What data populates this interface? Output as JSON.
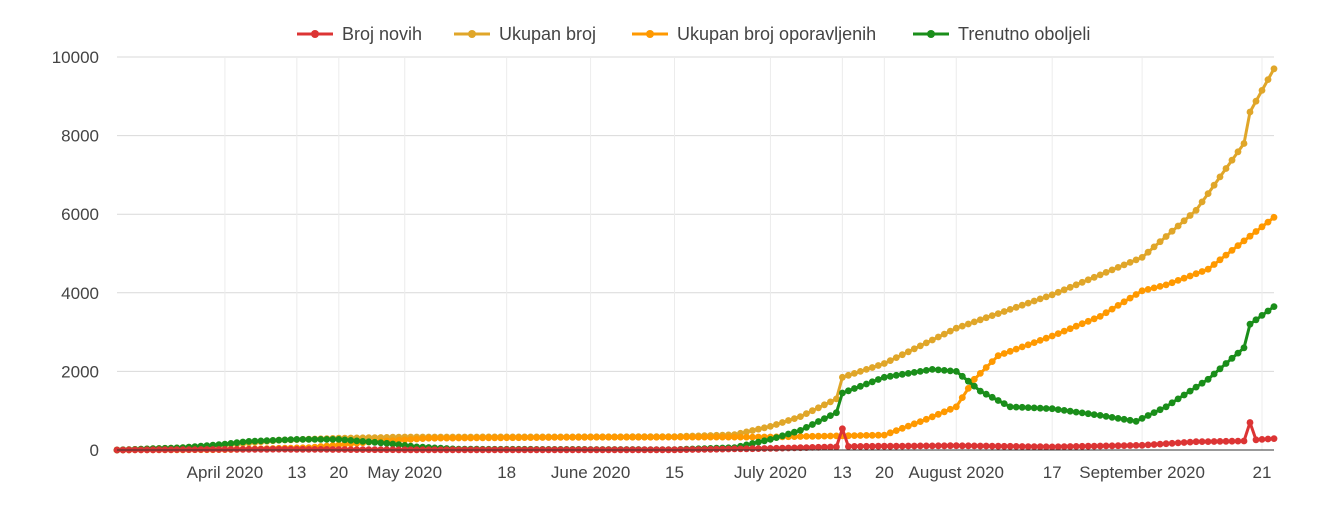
{
  "chart_data": {
    "type": "line",
    "legend_position": "top",
    "grid": true,
    "ylim": [
      0,
      10000
    ],
    "y_ticks": [
      0,
      2000,
      4000,
      6000,
      8000,
      10000
    ],
    "x_range": [
      "2020-03-14",
      "2020-09-23"
    ],
    "x_tick_labels": [
      {
        "date": "2020-04-01",
        "label": "April 2020"
      },
      {
        "date": "2020-04-13",
        "label": "13"
      },
      {
        "date": "2020-04-20",
        "label": "20"
      },
      {
        "date": "2020-05-01",
        "label": "May 2020"
      },
      {
        "date": "2020-05-18",
        "label": "18"
      },
      {
        "date": "2020-06-01",
        "label": "June 2020"
      },
      {
        "date": "2020-06-15",
        "label": "15"
      },
      {
        "date": "2020-07-01",
        "label": "July 2020"
      },
      {
        "date": "2020-07-13",
        "label": "13"
      },
      {
        "date": "2020-07-20",
        "label": "20"
      },
      {
        "date": "2020-08-01",
        "label": "August 2020"
      },
      {
        "date": "2020-08-17",
        "label": "17"
      },
      {
        "date": "2020-09-01",
        "label": "September 2020"
      },
      {
        "date": "2020-09-21",
        "label": "21"
      }
    ],
    "series": [
      {
        "name": "Broj novih",
        "color": "#dc3434",
        "points": [
          [
            "2020-03-14",
            0
          ],
          [
            "2020-03-25",
            10
          ],
          [
            "2020-04-10",
            20
          ],
          [
            "2020-05-01",
            5
          ],
          [
            "2020-06-15",
            5
          ],
          [
            "2020-07-01",
            40
          ],
          [
            "2020-07-12",
            80
          ],
          [
            "2020-07-13",
            540
          ],
          [
            "2020-07-14",
            90
          ],
          [
            "2020-08-01",
            110
          ],
          [
            "2020-08-17",
            80
          ],
          [
            "2020-09-01",
            120
          ],
          [
            "2020-09-05",
            160
          ],
          [
            "2020-09-10",
            210
          ],
          [
            "2020-09-18",
            230
          ],
          [
            "2020-09-19",
            700
          ],
          [
            "2020-09-20",
            260
          ],
          [
            "2020-09-23",
            290
          ]
        ]
      },
      {
        "name": "Ukupan broj",
        "color": "#e0a629",
        "points": [
          [
            "2020-03-14",
            0
          ],
          [
            "2020-03-25",
            60
          ],
          [
            "2020-04-01",
            130
          ],
          [
            "2020-04-10",
            250
          ],
          [
            "2020-04-20",
            300
          ],
          [
            "2020-05-01",
            330
          ],
          [
            "2020-06-01",
            335
          ],
          [
            "2020-06-15",
            340
          ],
          [
            "2020-06-25",
            390
          ],
          [
            "2020-07-01",
            600
          ],
          [
            "2020-07-06",
            850
          ],
          [
            "2020-07-12",
            1300
          ],
          [
            "2020-07-13",
            1850
          ],
          [
            "2020-07-20",
            2200
          ],
          [
            "2020-08-01",
            3100
          ],
          [
            "2020-08-17",
            3950
          ],
          [
            "2020-09-01",
            4900
          ],
          [
            "2020-09-10",
            6100
          ],
          [
            "2020-09-18",
            7800
          ],
          [
            "2020-09-19",
            8600
          ],
          [
            "2020-09-23",
            9700
          ]
        ]
      },
      {
        "name": "Ukupan broj oporavljenih",
        "color": "#ff9900",
        "points": [
          [
            "2020-03-14",
            0
          ],
          [
            "2020-04-01",
            10
          ],
          [
            "2020-04-15",
            60
          ],
          [
            "2020-04-25",
            200
          ],
          [
            "2020-05-05",
            300
          ],
          [
            "2020-06-01",
            325
          ],
          [
            "2020-07-01",
            330
          ],
          [
            "2020-07-20",
            380
          ],
          [
            "2020-07-27",
            780
          ],
          [
            "2020-08-01",
            1100
          ],
          [
            "2020-08-04",
            1800
          ],
          [
            "2020-08-08",
            2400
          ],
          [
            "2020-08-17",
            2900
          ],
          [
            "2020-08-25",
            3400
          ],
          [
            "2020-09-01",
            4050
          ],
          [
            "2020-09-05",
            4200
          ],
          [
            "2020-09-12",
            4600
          ],
          [
            "2020-09-23",
            5920
          ]
        ]
      },
      {
        "name": "Trenutno oboljeli",
        "color": "#1a8e1a",
        "points": [
          [
            "2020-03-14",
            0
          ],
          [
            "2020-03-25",
            60
          ],
          [
            "2020-04-01",
            150
          ],
          [
            "2020-04-05",
            220
          ],
          [
            "2020-04-13",
            270
          ],
          [
            "2020-04-20",
            270
          ],
          [
            "2020-04-28",
            170
          ],
          [
            "2020-05-03",
            80
          ],
          [
            "2020-05-10",
            20
          ],
          [
            "2020-06-15",
            10
          ],
          [
            "2020-06-25",
            60
          ],
          [
            "2020-07-01",
            270
          ],
          [
            "2020-07-06",
            500
          ],
          [
            "2020-07-12",
            950
          ],
          [
            "2020-07-13",
            1450
          ],
          [
            "2020-07-20",
            1850
          ],
          [
            "2020-07-28",
            2050
          ],
          [
            "2020-08-01",
            2000
          ],
          [
            "2020-08-05",
            1500
          ],
          [
            "2020-08-10",
            1100
          ],
          [
            "2020-08-17",
            1050
          ],
          [
            "2020-08-25",
            880
          ],
          [
            "2020-08-31",
            730
          ],
          [
            "2020-09-05",
            1100
          ],
          [
            "2020-09-12",
            1800
          ],
          [
            "2020-09-18",
            2600
          ],
          [
            "2020-09-19",
            3200
          ],
          [
            "2020-09-23",
            3650
          ]
        ]
      }
    ]
  }
}
